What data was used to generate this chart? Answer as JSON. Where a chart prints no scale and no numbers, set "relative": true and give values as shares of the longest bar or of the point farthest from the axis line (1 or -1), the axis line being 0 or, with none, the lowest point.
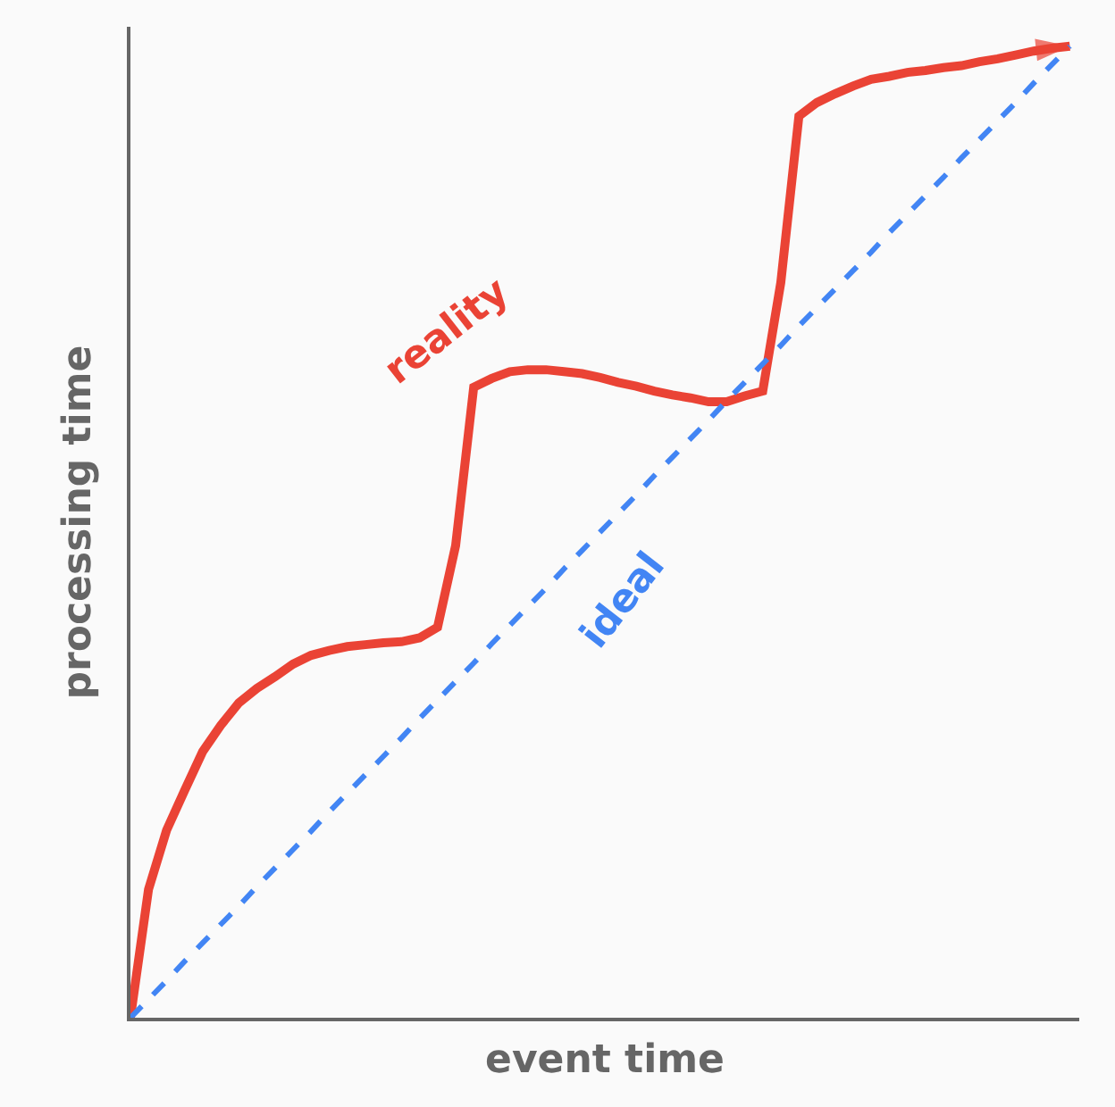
{
  "chart_data": {
    "type": "line",
    "relative": true,
    "xlabel": "event time",
    "ylabel": "processing time",
    "legend": false,
    "marker": "none",
    "categories": [
      null,
      null,
      null,
      null,
      null,
      null,
      null,
      null,
      null,
      null,
      null,
      null,
      null,
      null,
      null,
      null,
      null,
      null,
      null,
      null,
      null,
      null,
      null,
      null,
      null,
      null,
      null,
      null,
      null,
      null,
      null,
      null,
      null,
      null,
      null,
      null,
      null,
      null,
      null,
      null,
      null,
      null,
      null,
      null,
      null,
      null,
      null,
      null,
      null,
      null,
      null,
      null,
      null
    ],
    "series": [
      {
        "name": "reality",
        "color": "#ea4335",
        "line_style": "solid",
        "values": [
          0,
          0.132,
          0.193,
          0.234,
          0.274,
          0.301,
          0.324,
          0.339,
          0.351,
          0.364,
          0.373,
          0.378,
          0.382,
          0.384,
          0.386,
          0.387,
          0.391,
          0.402,
          0.486,
          0.649,
          0.658,
          0.665,
          0.667,
          0.667,
          0.665,
          0.663,
          0.659,
          0.654,
          0.65,
          0.645,
          0.641,
          0.638,
          0.634,
          0.634,
          0.64,
          0.645,
          0.757,
          0.928,
          0.942,
          0.951,
          0.959,
          0.966,
          0.969,
          0.973,
          0.975,
          0.978,
          0.98,
          0.984,
          0.987,
          0.991,
          0.995,
          0.998,
          1.0
        ]
      },
      {
        "name": "ideal",
        "color": "#4285f4",
        "line_style": "dashed",
        "values": [
          0,
          0.019,
          0.038,
          0.058,
          0.077,
          0.096,
          0.115,
          0.135,
          0.154,
          0.173,
          0.192,
          0.212,
          0.231,
          0.25,
          0.269,
          0.288,
          0.308,
          0.327,
          0.346,
          0.365,
          0.385,
          0.404,
          0.423,
          0.442,
          0.462,
          0.481,
          0.5,
          0.519,
          0.538,
          0.558,
          0.577,
          0.596,
          0.615,
          0.635,
          0.654,
          0.673,
          0.692,
          0.712,
          0.731,
          0.75,
          0.769,
          0.788,
          0.808,
          0.827,
          0.846,
          0.865,
          0.885,
          0.904,
          0.923,
          0.942,
          0.962,
          0.981,
          1.0
        ]
      }
    ]
  }
}
